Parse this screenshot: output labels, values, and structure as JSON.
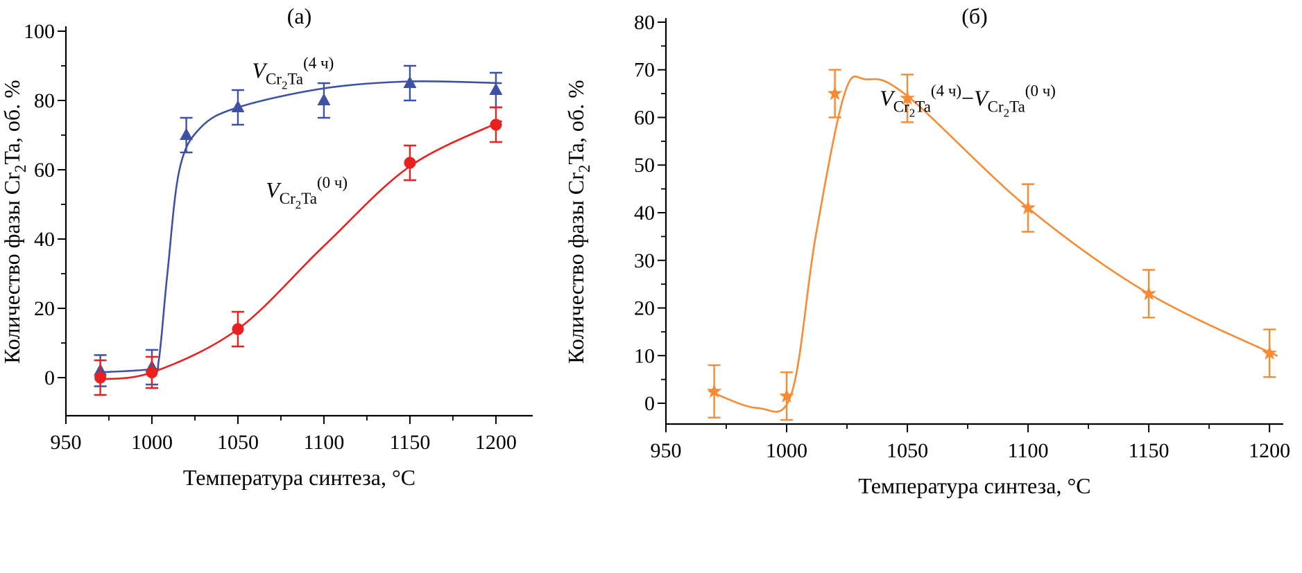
{
  "figure": {
    "background": "#ffffff",
    "text_color": "#000000"
  },
  "chart_data": [
    {
      "type": "line",
      "title": "(а)",
      "xlabel": "Температура синтеза, °C",
      "ylabel": "Количество фазы Cr2Ta, об. %",
      "ylabel_parts": [
        {
          "t": "Количество фазы Cr",
          "s": "n"
        },
        {
          "t": "2",
          "s": "sub"
        },
        {
          "t": "Ta, об. %",
          "s": "n"
        }
      ],
      "xlim": [
        950,
        1221.4
      ],
      "ylim": [
        -11,
        101.4
      ],
      "x_ticks": [
        950,
        1000,
        1050,
        1100,
        1150,
        1200
      ],
      "x_minor_ticks": [
        975,
        1025,
        1075,
        1125,
        1175
      ],
      "y_ticks": [
        0,
        20,
        40,
        60,
        80,
        100
      ],
      "y_minor_ticks": [
        10,
        30,
        50,
        70,
        90
      ],
      "grid": false,
      "series": [
        {
          "name": "V Cr2Ta (4 ч)",
          "color": "#3d52a5",
          "marker": "triangle",
          "x": [
            970,
            1000,
            1020,
            1050,
            1100,
            1150,
            1200
          ],
          "y": [
            2,
            3,
            70,
            78,
            80,
            85,
            83
          ],
          "yerr": [
            4.5,
            5,
            5,
            5,
            5,
            5,
            5
          ],
          "curve": [
            [
              968,
              1.5
            ],
            [
              1000,
              2.5
            ],
            [
              1004,
              5
            ],
            [
              1009,
              30
            ],
            [
              1016,
              60
            ],
            [
              1028,
              72
            ],
            [
              1050,
              78
            ],
            [
              1100,
              83.5
            ],
            [
              1150,
              85.5
            ],
            [
              1203,
              85
            ]
          ]
        },
        {
          "name": "V Cr2Ta (0 ч)",
          "color": "#e8201e",
          "marker": "circle",
          "x": [
            970,
            1000,
            1050,
            1150,
            1200
          ],
          "y": [
            0,
            1.5,
            14,
            62,
            73
          ],
          "yerr": [
            5,
            4.5,
            5,
            5,
            5
          ],
          "curve": [
            [
              968,
              -0.5
            ],
            [
              1000,
              1.5
            ],
            [
              1050,
              14
            ],
            [
              1100,
              38
            ],
            [
              1150,
              61
            ],
            [
              1203,
              74
            ]
          ]
        }
      ],
      "annotations": [
        {
          "text": "V Cr2Ta (4 ч)",
          "x": 1082,
          "y": 86.5,
          "parts": [
            {
              "t": "V",
              "s": "it"
            },
            {
              "t": "Cr",
              "s": "sub"
            },
            {
              "t": "2",
              "s": "sub2"
            },
            {
              "t": "Ta",
              "s": "sub"
            },
            {
              "t": "(4 ч)",
              "s": "sup"
            }
          ]
        },
        {
          "text": "V Cr2Ta (0 ч)",
          "x": 1090,
          "y": 52,
          "parts": [
            {
              "t": "V",
              "s": "it"
            },
            {
              "t": "Cr",
              "s": "sub"
            },
            {
              "t": "2",
              "s": "sub2"
            },
            {
              "t": "Ta",
              "s": "sub"
            },
            {
              "t": "(0 ч)",
              "s": "sup"
            }
          ]
        }
      ]
    },
    {
      "type": "line",
      "title": "(б)",
      "xlabel": "Температура синтеза, °C",
      "ylabel": "Количество фазы Cr2Ta, об. %",
      "ylabel_parts": [
        {
          "t": "Количество фазы Cr",
          "s": "n"
        },
        {
          "t": "2",
          "s": "sub"
        },
        {
          "t": "Ta, об. %",
          "s": "n"
        }
      ],
      "xlim": [
        950,
        1205.7
      ],
      "ylim": [
        -4.36,
        80.87
      ],
      "x_ticks": [
        950,
        1000,
        1050,
        1100,
        1150,
        1200
      ],
      "x_minor_ticks": [
        975,
        1025,
        1075,
        1125,
        1175
      ],
      "y_ticks": [
        0,
        10,
        20,
        30,
        40,
        50,
        60,
        70,
        80
      ],
      "y_minor_ticks": [
        5,
        15,
        25,
        35,
        45,
        55,
        65,
        75
      ],
      "grid": false,
      "series": [
        {
          "name": "V Cr2Ta (4 ч) − V Cr2Ta (0 ч)",
          "color": "#f68b33",
          "marker": "star",
          "x": [
            970,
            1000,
            1020,
            1050,
            1100,
            1150,
            1200
          ],
          "y": [
            2.5,
            1.5,
            65,
            64,
            41,
            23,
            10.5
          ],
          "yerr": [
            5.5,
            5,
            5,
            5,
            5,
            5,
            5
          ],
          "curve": [
            [
              968,
              2.5
            ],
            [
              988,
              -1
            ],
            [
              1002,
              2
            ],
            [
              1012,
              35
            ],
            [
              1024,
              65
            ],
            [
              1033,
              68
            ],
            [
              1050,
              64.5
            ],
            [
              1100,
              41
            ],
            [
              1150,
              23
            ],
            [
              1203,
              10
            ]
          ]
        }
      ],
      "annotations": [
        {
          "text": "V Cr2Ta (4 ч) − V Cr2Ta (0 ч)",
          "x": 1075,
          "y": 62.5,
          "parts": [
            {
              "t": "V",
              "s": "it"
            },
            {
              "t": "Cr",
              "s": "sub"
            },
            {
              "t": "2",
              "s": "sub2"
            },
            {
              "t": "Ta",
              "s": "sub"
            },
            {
              "t": "(4 ч)",
              "s": "sup"
            },
            {
              "t": "−",
              "s": "n"
            },
            {
              "t": "V",
              "s": "it"
            },
            {
              "t": "Cr",
              "s": "sub"
            },
            {
              "t": "2",
              "s": "sub2"
            },
            {
              "t": "Ta",
              "s": "sub"
            },
            {
              "t": "(0 ч)",
              "s": "sup"
            }
          ]
        }
      ]
    }
  ]
}
